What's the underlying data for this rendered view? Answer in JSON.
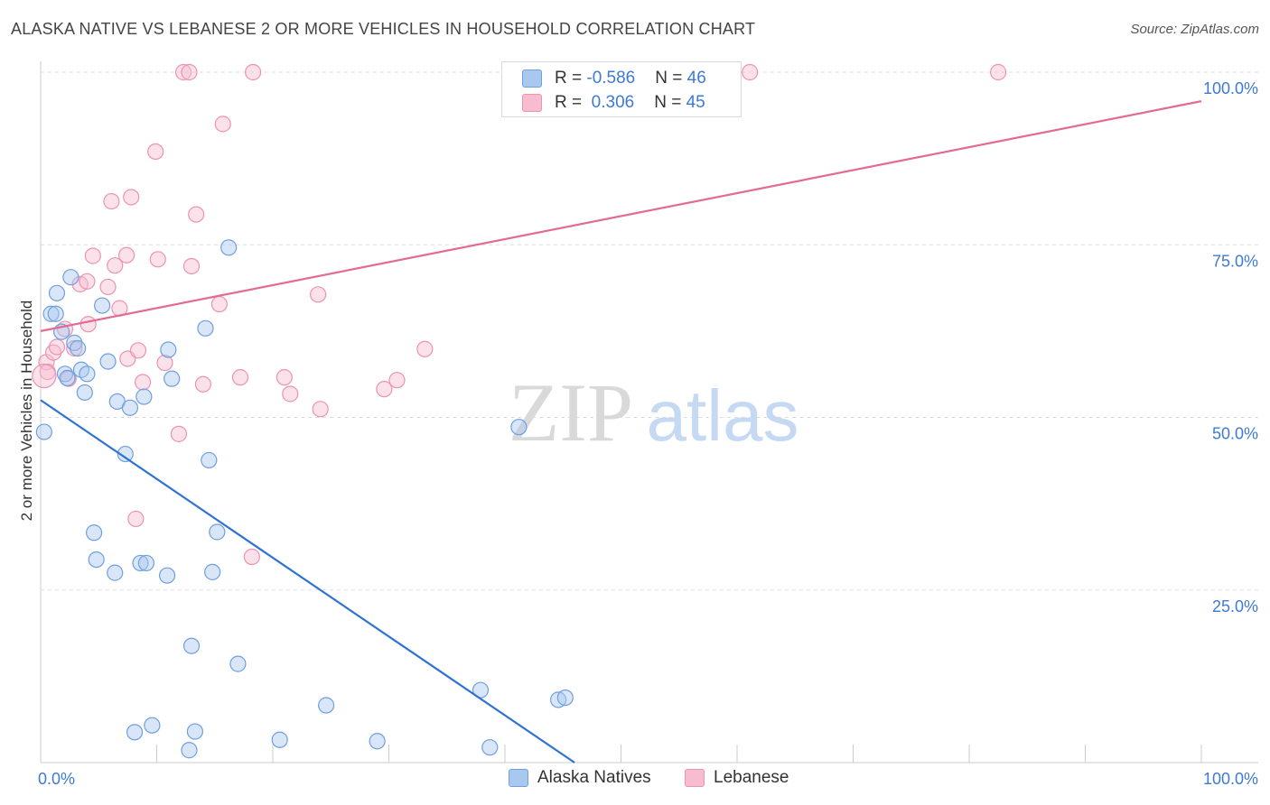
{
  "title": "ALASKA NATIVE VS LEBANESE 2 OR MORE VEHICLES IN HOUSEHOLD CORRELATION CHART",
  "source": "Source: ZipAtlas.com",
  "watermark": {
    "part1": "ZIP",
    "part2": "atlas"
  },
  "legend": {
    "rows": [
      {
        "r_label": "R = ",
        "r_value": "-0.586",
        "n_label": "N = ",
        "n_value": "46"
      },
      {
        "r_label": "R = ",
        "r_value": " 0.306",
        "n_label": "N = ",
        "n_value": "45"
      }
    ]
  },
  "bottom_legend": {
    "series1": "Alaska Natives",
    "series2": "Lebanese"
  },
  "colors": {
    "blue_fill": "#a9c8f0",
    "blue_stroke": "#6f9fe0",
    "blue_line": "#2f72d6",
    "pink_fill": "#f7bcd0",
    "pink_stroke": "#ec93b2",
    "pink_line": "#e36b93",
    "axis_text": "#3d7ad6",
    "grid": "#dddddd"
  },
  "chart_data": {
    "type": "scatter",
    "title": "ALASKA NATIVE VS LEBANESE 2 OR MORE VEHICLES IN HOUSEHOLD CORRELATION CHART",
    "xlabel": "",
    "ylabel": "2 or more Vehicles in Household",
    "xlim": [
      0,
      100
    ],
    "ylim": [
      0,
      100
    ],
    "x_tick_labels": {
      "min": "0.0%",
      "max": "100.0%"
    },
    "y_ticks": [
      25,
      50,
      75,
      100
    ],
    "y_tick_labels": [
      "25.0%",
      "50.0%",
      "75.0%",
      "100.0%"
    ],
    "series": [
      {
        "name": "Alaska Natives",
        "r": -0.586,
        "n": 46,
        "trend": {
          "x": [
            0,
            46
          ],
          "y": [
            52.5,
            0
          ]
        },
        "points": [
          {
            "x": 0.3,
            "y": 47.9
          },
          {
            "x": 0.9,
            "y": 65.0
          },
          {
            "x": 1.3,
            "y": 65.0
          },
          {
            "x": 1.4,
            "y": 68.0
          },
          {
            "x": 1.8,
            "y": 62.4
          },
          {
            "x": 2.1,
            "y": 56.3
          },
          {
            "x": 2.3,
            "y": 55.7
          },
          {
            "x": 2.6,
            "y": 70.3
          },
          {
            "x": 2.9,
            "y": 60.8
          },
          {
            "x": 3.2,
            "y": 60.0
          },
          {
            "x": 3.5,
            "y": 56.9
          },
          {
            "x": 3.8,
            "y": 53.6
          },
          {
            "x": 4.0,
            "y": 56.3
          },
          {
            "x": 4.6,
            "y": 33.3
          },
          {
            "x": 4.8,
            "y": 29.4
          },
          {
            "x": 5.3,
            "y": 66.2
          },
          {
            "x": 5.8,
            "y": 58.1
          },
          {
            "x": 6.4,
            "y": 27.5
          },
          {
            "x": 6.6,
            "y": 52.3
          },
          {
            "x": 7.3,
            "y": 44.7
          },
          {
            "x": 7.7,
            "y": 51.4
          },
          {
            "x": 8.1,
            "y": 4.4
          },
          {
            "x": 8.6,
            "y": 28.9
          },
          {
            "x": 8.9,
            "y": 53.0
          },
          {
            "x": 9.1,
            "y": 28.9
          },
          {
            "x": 9.6,
            "y": 5.4
          },
          {
            "x": 10.9,
            "y": 27.1
          },
          {
            "x": 11.0,
            "y": 59.8
          },
          {
            "x": 11.3,
            "y": 55.6
          },
          {
            "x": 12.8,
            "y": 1.8
          },
          {
            "x": 13.0,
            "y": 16.9
          },
          {
            "x": 13.3,
            "y": 4.5
          },
          {
            "x": 14.2,
            "y": 62.9
          },
          {
            "x": 14.5,
            "y": 43.8
          },
          {
            "x": 14.8,
            "y": 27.6
          },
          {
            "x": 15.2,
            "y": 33.4
          },
          {
            "x": 16.2,
            "y": 74.6
          },
          {
            "x": 17.0,
            "y": 14.3
          },
          {
            "x": 20.6,
            "y": 3.3
          },
          {
            "x": 24.6,
            "y": 8.3
          },
          {
            "x": 29.0,
            "y": 3.1
          },
          {
            "x": 37.9,
            "y": 10.5
          },
          {
            "x": 38.7,
            "y": 2.2
          },
          {
            "x": 41.2,
            "y": 48.6
          },
          {
            "x": 44.6,
            "y": 9.1
          },
          {
            "x": 45.2,
            "y": 9.4
          }
        ]
      },
      {
        "name": "Lebanese",
        "r": 0.306,
        "n": 45,
        "trend": {
          "x": [
            0,
            100
          ],
          "y": [
            62.5,
            95.8
          ]
        },
        "points": [
          {
            "x": 0.5,
            "y": 58.0
          },
          {
            "x": 0.6,
            "y": 56.6
          },
          {
            "x": 1.1,
            "y": 59.4
          },
          {
            "x": 1.4,
            "y": 60.2
          },
          {
            "x": 2.1,
            "y": 62.8
          },
          {
            "x": 2.4,
            "y": 55.6
          },
          {
            "x": 2.9,
            "y": 60.0
          },
          {
            "x": 3.4,
            "y": 69.3
          },
          {
            "x": 4.0,
            "y": 69.7
          },
          {
            "x": 4.1,
            "y": 63.5
          },
          {
            "x": 4.5,
            "y": 73.4
          },
          {
            "x": 5.8,
            "y": 68.9
          },
          {
            "x": 6.1,
            "y": 81.3
          },
          {
            "x": 6.4,
            "y": 72.0
          },
          {
            "x": 6.8,
            "y": 65.8
          },
          {
            "x": 7.4,
            "y": 73.5
          },
          {
            "x": 7.5,
            "y": 58.5
          },
          {
            "x": 7.8,
            "y": 81.9
          },
          {
            "x": 8.2,
            "y": 35.3
          },
          {
            "x": 8.4,
            "y": 59.7
          },
          {
            "x": 8.8,
            "y": 55.1
          },
          {
            "x": 9.9,
            "y": 88.5
          },
          {
            "x": 10.1,
            "y": 72.9
          },
          {
            "x": 10.7,
            "y": 57.9
          },
          {
            "x": 11.9,
            "y": 47.6
          },
          {
            "x": 12.3,
            "y": 100.0
          },
          {
            "x": 12.8,
            "y": 100.0
          },
          {
            "x": 13.0,
            "y": 71.9
          },
          {
            "x": 13.4,
            "y": 79.4
          },
          {
            "x": 14.0,
            "y": 54.8
          },
          {
            "x": 15.4,
            "y": 66.4
          },
          {
            "x": 15.7,
            "y": 92.5
          },
          {
            "x": 17.2,
            "y": 55.8
          },
          {
            "x": 18.2,
            "y": 29.8
          },
          {
            "x": 18.3,
            "y": 100.0
          },
          {
            "x": 21.0,
            "y": 55.8
          },
          {
            "x": 21.5,
            "y": 53.4
          },
          {
            "x": 23.9,
            "y": 67.8
          },
          {
            "x": 24.1,
            "y": 51.2
          },
          {
            "x": 29.6,
            "y": 54.1
          },
          {
            "x": 30.7,
            "y": 55.4
          },
          {
            "x": 33.1,
            "y": 59.9
          },
          {
            "x": 61.1,
            "y": 100.0
          },
          {
            "x": 82.5,
            "y": 100.0
          },
          {
            "x": 0.3,
            "y": 56.0
          }
        ]
      }
    ],
    "watermark": "ZIPatlas"
  }
}
